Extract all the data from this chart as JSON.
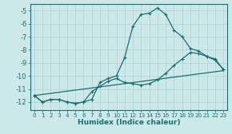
{
  "xlabel": "Humidex (Indice chaleur)",
  "bg_color": "#cde8e8",
  "line_color": "#1a7070",
  "grid_color": "#b8d8d8",
  "xlim": [
    -0.5,
    23.5
  ],
  "ylim": [
    -12.6,
    -4.5
  ],
  "yticks": [
    -12,
    -11,
    -10,
    -9,
    -8,
    -7,
    -6,
    -5
  ],
  "xticks": [
    0,
    1,
    2,
    3,
    4,
    5,
    6,
    7,
    8,
    9,
    10,
    11,
    12,
    13,
    14,
    15,
    16,
    17,
    18,
    19,
    20,
    21,
    22,
    23
  ],
  "line1_x": [
    0,
    1,
    2,
    3,
    4,
    5,
    6,
    7,
    8,
    9,
    10,
    11,
    12,
    13,
    14,
    15,
    16,
    17,
    18,
    19,
    20,
    21,
    22,
    23
  ],
  "line1_y": [
    -11.5,
    -12.0,
    -11.8,
    -11.8,
    -12.0,
    -12.1,
    -12.0,
    -11.8,
    -10.5,
    -10.2,
    -10.0,
    -8.6,
    -6.2,
    -5.3,
    -5.2,
    -4.8,
    -5.3,
    -6.5,
    -7.0,
    -7.9,
    -8.1,
    -8.5,
    -8.8,
    -9.5
  ],
  "line2_x": [
    0,
    1,
    2,
    3,
    4,
    5,
    6,
    7,
    8,
    9,
    10,
    11,
    12,
    13,
    14,
    15,
    16,
    17,
    18,
    19,
    20,
    21,
    22,
    23
  ],
  "line2_y": [
    -11.5,
    -12.0,
    -11.8,
    -11.8,
    -12.0,
    -12.1,
    -12.0,
    -11.2,
    -10.8,
    -10.4,
    -10.2,
    -10.5,
    -10.6,
    -10.7,
    -10.6,
    -10.3,
    -9.8,
    -9.2,
    -8.7,
    -8.2,
    -8.3,
    -8.5,
    -8.7,
    -9.5
  ],
  "line3_x": [
    0,
    23
  ],
  "line3_y": [
    -11.5,
    -9.6
  ]
}
